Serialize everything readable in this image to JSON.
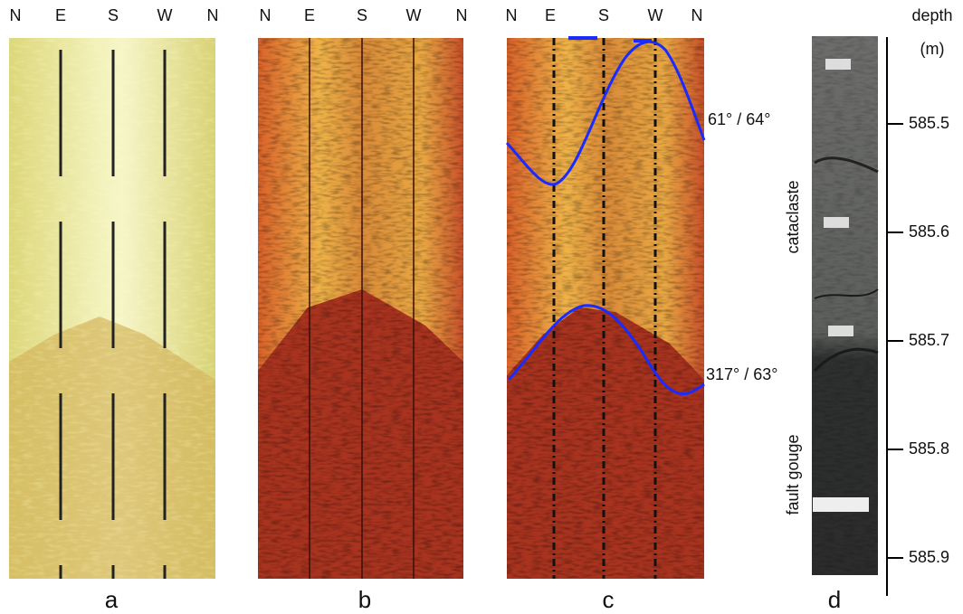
{
  "panels": [
    {
      "label": "a",
      "compass": [
        "N",
        "E",
        "S",
        "W",
        "N"
      ]
    },
    {
      "label": "b",
      "compass": [
        "N",
        "E",
        "S",
        "W",
        "N"
      ]
    },
    {
      "label": "c",
      "compass": [
        "N",
        "E",
        "S",
        "W",
        "N"
      ],
      "annotations": [
        "61° / 64°",
        "317° / 63°"
      ]
    },
    {
      "label": "d",
      "units": [
        "cataclaste",
        "fault gouge"
      ],
      "depth_axis": {
        "title": "depth",
        "unit": "(m)",
        "ylim": [
          585.42,
          585.935
        ],
        "ticks": [
          585.5,
          585.6,
          585.7,
          585.8,
          585.9
        ]
      }
    }
  ]
}
